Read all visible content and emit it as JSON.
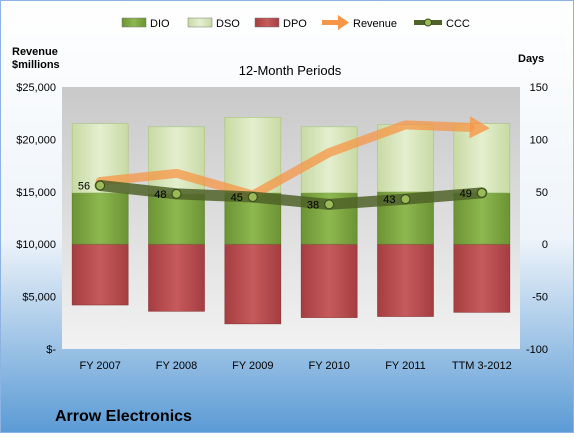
{
  "chart_data": {
    "type": "bar",
    "title": "12-Month Periods",
    "company": "Arrow Electronics",
    "left_axis_label": [
      "Revenue",
      "$millions"
    ],
    "right_axis_label": "Days",
    "categories": [
      "FY 2007",
      "FY 2008",
      "FY 2009",
      "FY 2010",
      "FY 2011",
      "TTM 3-2012"
    ],
    "left_axis": {
      "min": 0,
      "max": 25000,
      "ticks": [
        0,
        5000,
        10000,
        15000,
        20000,
        25000
      ],
      "tick_labels": [
        "$-",
        "$5,000",
        "$10,000",
        "$15,000",
        "$20,000",
        "$25,000"
      ]
    },
    "right_axis": {
      "min": -100,
      "max": 150,
      "ticks": [
        -100,
        -50,
        0,
        50,
        100,
        150
      ],
      "tick_labels": [
        "-100",
        "-50",
        "0",
        "50",
        "100",
        "150"
      ]
    },
    "series": [
      {
        "name": "DIO",
        "kind": "bar",
        "axis": "right",
        "color": "#77A03C",
        "values": [
          49,
          48,
          49,
          49,
          50,
          49
        ]
      },
      {
        "name": "DSO",
        "kind": "bar",
        "axis": "right",
        "color": "#D7E4BD",
        "values": [
          66,
          64,
          72,
          63,
          64,
          66
        ]
      },
      {
        "name": "DPO",
        "kind": "bar",
        "axis": "right",
        "color": "#B8474A",
        "values": [
          -58,
          -64,
          -76,
          -70,
          -69,
          -65
        ]
      },
      {
        "name": "Revenue",
        "kind": "line",
        "axis": "left",
        "color": "#F79646",
        "values": [
          15985,
          16761,
          14684,
          18745,
          21390,
          21100
        ]
      },
      {
        "name": "CCC",
        "kind": "line",
        "axis": "right",
        "color": "#4F6228",
        "values": [
          56,
          48,
          45,
          38,
          43,
          49
        ]
      }
    ],
    "data_labels": {
      "series": "CCC",
      "labels": [
        "56",
        "48",
        "45",
        "38",
        "43",
        "49"
      ]
    },
    "legend": {
      "position": "top"
    },
    "grid": false
  }
}
